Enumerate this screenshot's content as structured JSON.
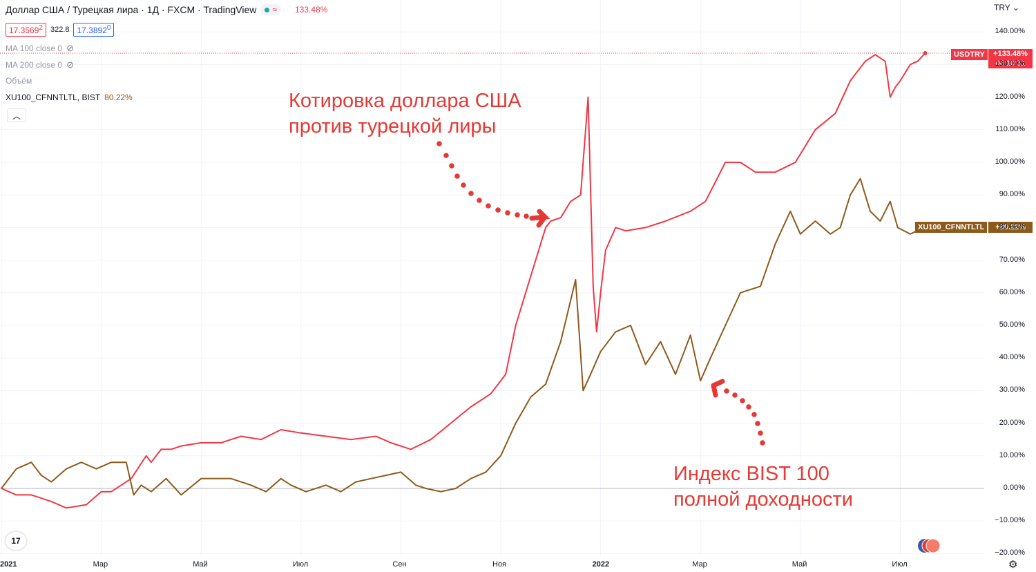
{
  "header": {
    "title": "Доллар США / Турецкая лира · 1Д · FXCM · TradingView",
    "change_pct": "133.48%",
    "bid": "17.3569",
    "bid_sup": "2",
    "spread": "322.8",
    "ask": "17.3892",
    "ask_sup": "0",
    "currency": "TRY"
  },
  "indicators": [
    {
      "label": "MA 100 close 0"
    },
    {
      "label": "MA 200 close 0"
    },
    {
      "label": "Объём"
    }
  ],
  "compare": {
    "symbol": "XU100_CFNNTLTL, BIST",
    "value": "80.22%"
  },
  "annotations": {
    "usd_line1": "Котировка доллара США",
    "usd_line2": "против турецкой лиры",
    "bist_line1": "Индекс BIST 100",
    "bist_line2": "полной доходности"
  },
  "tags": {
    "usd_symbol": "USDTRY",
    "usd_value": "+133.48%",
    "usd_time": "04:10:31",
    "bist_symbol": "XU100_CFNNTLTL",
    "bist_value": "+80.22%"
  },
  "colors": {
    "usd": "#f23645",
    "bist": "#8d5a1a",
    "annot": "#e53935"
  },
  "icons": {
    "logo": "tradingview-logo-icon",
    "settings": "gear-icon",
    "flag": "us-tr-flag-icon",
    "eye": "eye-off-icon"
  },
  "chart_data": {
    "type": "line",
    "ylabel": "",
    "yticks": [
      "140.00%",
      "130.00%",
      "120.00%",
      "110.00%",
      "100.00%",
      "90.00%",
      "80.00%",
      "70.00%",
      "60.00%",
      "50.00%",
      "40.00%",
      "30.00%",
      "20.00%",
      "10.00%",
      "0.00%",
      "−10.00%",
      "−20.00%"
    ],
    "ytick_values": [
      140,
      130,
      120,
      110,
      100,
      90,
      80,
      70,
      60,
      50,
      40,
      30,
      20,
      10,
      0,
      -10,
      -20
    ],
    "xticks": [
      "2021",
      "Мар",
      "Май",
      "Июл",
      "Сен",
      "Ноя",
      "2022",
      "Мар",
      "Май",
      "Июл"
    ],
    "xtick_values": [
      0,
      2,
      4,
      6,
      8,
      10,
      12,
      14,
      16,
      18
    ],
    "x_unit": "months since Jan 2021",
    "ylim": [
      -20,
      142
    ],
    "xlim": [
      0,
      20
    ],
    "series": [
      {
        "name": "USDTRY",
        "x": [
          0,
          0.3,
          0.6,
          1,
          1.3,
          1.7,
          2,
          2.2,
          2.6,
          2.9,
          3.0,
          3.2,
          3.4,
          3.6,
          4.0,
          4.4,
          4.8,
          5.2,
          5.6,
          6.0,
          6.5,
          7.0,
          7.5,
          7.8,
          8.2,
          8.6,
          9.0,
          9.4,
          9.8,
          10.1,
          10.3,
          10.5,
          10.7,
          10.8,
          10.9,
          11.0,
          11.2,
          11.4,
          11.6,
          11.75,
          11.85,
          11.92,
          12.0,
          12.1,
          12.3,
          12.5,
          12.9,
          13.3,
          13.8,
          14.1,
          14.5,
          14.8,
          15.1,
          15.5,
          15.9,
          16.3,
          16.7,
          17.0,
          17.3,
          17.5,
          17.7,
          17.8,
          17.9,
          18.0,
          18.2,
          18.35,
          18.5
        ],
        "values": [
          0,
          -2,
          -2,
          -4,
          -6,
          -5,
          -1,
          -1,
          3,
          10,
          8,
          12,
          12,
          13,
          14,
          14,
          16,
          15,
          18,
          17,
          16,
          15,
          16,
          14,
          12,
          15,
          20,
          25,
          29,
          35,
          50,
          60,
          70,
          75,
          80,
          82,
          83,
          88,
          90,
          120,
          62,
          48,
          60,
          73,
          80,
          79,
          80,
          82,
          85,
          88,
          100,
          100,
          97,
          97,
          100,
          110,
          115,
          125,
          131,
          133,
          131,
          120,
          123,
          125,
          130,
          131,
          133.48
        ]
      },
      {
        "name": "XU100_CFNNTLTL",
        "x": [
          0,
          0.3,
          0.6,
          0.8,
          1,
          1.3,
          1.6,
          1.9,
          2.2,
          2.5,
          2.65,
          2.8,
          3.0,
          3.3,
          3.6,
          4.0,
          4.3,
          4.6,
          5.0,
          5.3,
          5.6,
          5.8,
          6.1,
          6.5,
          6.8,
          7.1,
          7.4,
          7.7,
          8.0,
          8.3,
          8.5,
          8.8,
          9.1,
          9.4,
          9.7,
          10.0,
          10.3,
          10.6,
          10.9,
          11.2,
          11.5,
          11.65,
          11.8,
          12.0,
          12.3,
          12.6,
          12.9,
          13.2,
          13.5,
          13.8,
          14.0,
          14.2,
          14.5,
          14.8,
          15.2,
          15.5,
          15.8,
          16.0,
          16.3,
          16.6,
          16.8,
          17.0,
          17.2,
          17.4,
          17.6,
          17.8,
          17.95,
          18.2,
          18.5
        ],
        "values": [
          0,
          6,
          8,
          4,
          2,
          6,
          8,
          6,
          8,
          8,
          -2,
          1,
          -1,
          3,
          -2,
          3,
          3,
          3,
          1,
          -1,
          3,
          1,
          -1,
          1,
          -1,
          2,
          3,
          4,
          5,
          1,
          0,
          -1,
          0,
          3,
          5,
          10,
          20,
          28,
          32,
          45,
          64,
          30,
          35,
          42,
          48,
          50,
          38,
          45,
          35,
          47,
          33,
          40,
          50,
          60,
          62,
          75,
          85,
          78,
          82,
          78,
          80,
          90,
          95,
          85,
          82,
          88,
          80,
          78,
          80.22
        ]
      }
    ]
  }
}
